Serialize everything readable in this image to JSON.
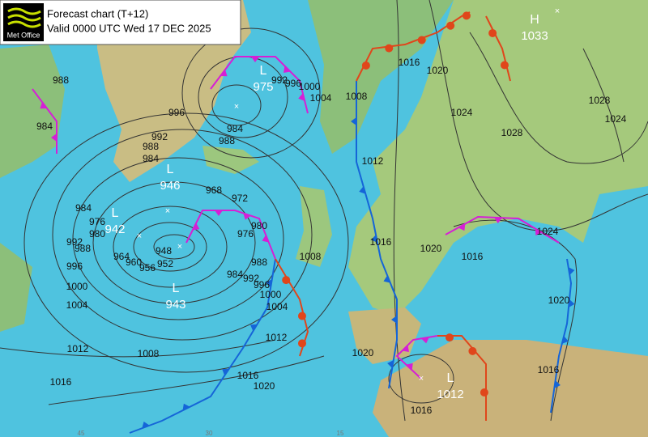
{
  "header": {
    "logo": "Met Office",
    "title": "Forecast chart (T+12)",
    "valid": "Valid 0000 UTC Wed 17 DEC 2025"
  },
  "centres": [
    {
      "letter": "H",
      "value": 1033
    },
    {
      "letter": "L",
      "value": 975
    },
    {
      "letter": "L",
      "value": 946
    },
    {
      "letter": "L",
      "value": 942
    },
    {
      "letter": "L",
      "value": 943
    },
    {
      "letter": "L",
      "value": 1012
    }
  ],
  "isobar_labels": [
    988,
    984,
    996,
    992,
    988,
    984,
    992,
    996,
    1000,
    1004,
    984,
    988,
    1008,
    1016,
    1020,
    1024,
    1028,
    1028,
    1024,
    1012,
    968,
    972,
    976,
    980,
    984,
    976,
    980,
    988,
    992,
    996,
    1000,
    1004,
    948,
    952,
    956,
    960,
    964,
    984,
    988,
    992,
    996,
    1000,
    1004,
    1008,
    1012,
    1016,
    1020,
    1016,
    1020,
    1016,
    1024,
    1020,
    1020,
    1016,
    1016,
    1012,
    1008,
    1016
  ],
  "longitude_labels": [
    "45",
    "30",
    "15"
  ]
}
